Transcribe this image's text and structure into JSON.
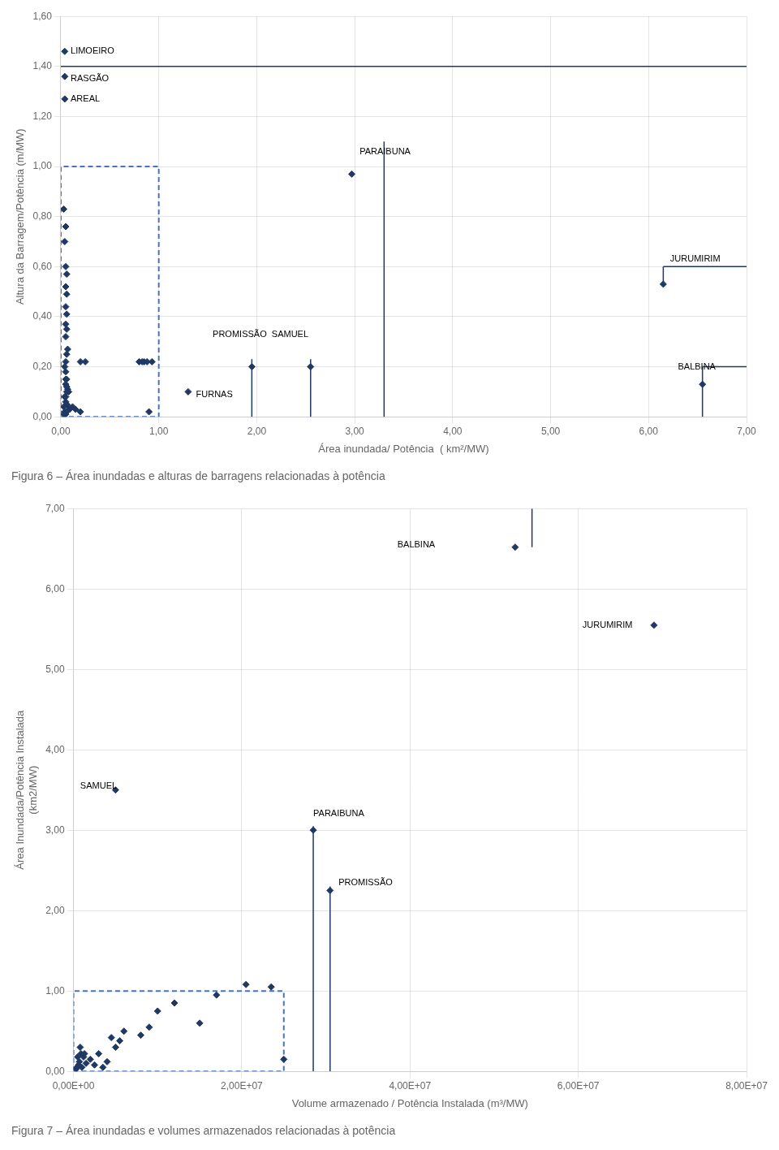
{
  "chart_data": [
    {
      "type": "scatter",
      "title": "Figura 6 – Área inundadas e alturas de barragens relacionadas à potência",
      "x_label": "Área inundada/ Potência  ( km²/MW)",
      "y_label": "Altura da Barragem/Potência (m/MW)",
      "xlim": [
        0,
        7.0
      ],
      "ylim": [
        0,
        1.6
      ],
      "xticks": [
        {
          "value": 0,
          "label": "0,00"
        },
        {
          "value": 1,
          "label": "1,00"
        },
        {
          "value": 2,
          "label": "2,00"
        },
        {
          "value": 3,
          "label": "3,00"
        },
        {
          "value": 4,
          "label": "4,00"
        },
        {
          "value": 5,
          "label": "5,00"
        },
        {
          "value": 6,
          "label": "6,00"
        },
        {
          "value": 7,
          "label": "7,00"
        }
      ],
      "yticks": [
        {
          "value": 0,
          "label": "0,00"
        },
        {
          "value": 0.2,
          "label": "0,20"
        },
        {
          "value": 0.4,
          "label": "0,40"
        },
        {
          "value": 0.6,
          "label": "0,60"
        },
        {
          "value": 0.8,
          "label": "0,80"
        },
        {
          "value": 1.0,
          "label": "1,00"
        },
        {
          "value": 1.2,
          "label": "1,20"
        },
        {
          "value": 1.4,
          "label": "1,40"
        },
        {
          "value": 1.6,
          "label": "1,60"
        }
      ],
      "grid": true,
      "color": "#1F3864",
      "marker": "diamond",
      "x": [
        0.04,
        0.04,
        0.04,
        2.97,
        6.15,
        2.55,
        6.55,
        1.3,
        0.03,
        0.05,
        0.04,
        0.05,
        0.06,
        0.05,
        0.06,
        0.05,
        0.06,
        0.05,
        0.06,
        0.05,
        0.07,
        0.06,
        0.05,
        0.04,
        0.05,
        0.06,
        0.05,
        0.07,
        0.06,
        0.05,
        0.2,
        0.25,
        0.05,
        0.06,
        0.08,
        0.04,
        0.05,
        0.06,
        0.03,
        0.08,
        0.12,
        0.15,
        0.09,
        0.04,
        0.06,
        0.05,
        0.03,
        0.2,
        0.9,
        0.8,
        0.85,
        0.83,
        0.88,
        0.93,
        1.95
      ],
      "values": [
        1.46,
        1.36,
        1.27,
        0.97,
        0.53,
        0.2,
        0.13,
        0.1,
        0.83,
        0.76,
        0.7,
        0.6,
        0.57,
        0.52,
        0.49,
        0.44,
        0.41,
        0.37,
        0.35,
        0.32,
        0.27,
        0.25,
        0.22,
        0.2,
        0.18,
        0.15,
        0.13,
        0.11,
        0.1,
        0.08,
        0.22,
        0.22,
        0.15,
        0.12,
        0.1,
        0.08,
        0.06,
        0.05,
        0.04,
        0.04,
        0.04,
        0.03,
        0.03,
        0.02,
        0.02,
        0.01,
        0.01,
        0.02,
        0.02,
        0.22,
        0.22,
        0.22,
        0.22,
        0.22,
        0.2
      ],
      "annotations": [
        {
          "text": "LIMOEIRO",
          "x": 0.1,
          "y": 1.46
        },
        {
          "text": "RASGÃO",
          "x": 0.1,
          "y": 1.35
        },
        {
          "text": "AREAL",
          "x": 0.1,
          "y": 1.27
        },
        {
          "text": "PARAIBUNA",
          "x": 3.05,
          "y": 1.06
        },
        {
          "text": "JURUMIRIM",
          "x": 6.22,
          "y": 0.63
        },
        {
          "text": "PROMISSÃO  SAMUEL",
          "x": 1.55,
          "y": 0.33
        },
        {
          "text": "BALBINA",
          "x": 6.3,
          "y": 0.2
        },
        {
          "text": "FURNAS",
          "x": 1.38,
          "y": 0.09
        }
      ],
      "lines": [
        {
          "x": [
            0.0,
            7.0
          ],
          "y": [
            1.4,
            1.4
          ],
          "color": "#1F3864"
        },
        {
          "x": [
            6.15,
            7.0
          ],
          "y": [
            0.6,
            0.6
          ],
          "color": "#1F3864"
        },
        {
          "x": [
            6.55,
            7.0
          ],
          "y": [
            0.2,
            0.2
          ],
          "color": "#1F3864"
        },
        {
          "x": [
            6.55,
            6.55
          ],
          "y": [
            0.0,
            0.2
          ],
          "color": "#1F3864"
        },
        {
          "x": [
            6.15,
            6.15
          ],
          "y": [
            0.53,
            0.6
          ],
          "color": "#1F3864"
        },
        {
          "x": [
            3.3,
            3.3
          ],
          "y": [
            0.0,
            1.1
          ],
          "color": "#1F3864"
        },
        {
          "x": [
            1.95,
            1.95
          ],
          "y": [
            0.0,
            0.23
          ],
          "color": "#1F3864"
        },
        {
          "x": [
            2.55,
            2.55
          ],
          "y": [
            0.0,
            0.23
          ],
          "color": "#1F3864"
        }
      ],
      "rects": [
        {
          "x0": 0.0,
          "y0": 0.0,
          "x1": 1.0,
          "y1": 1.0,
          "color": "#4472C4",
          "line_style": "dashed"
        }
      ]
    },
    {
      "type": "scatter",
      "title": "Figura 7 – Área inundadas e volumes armazenados relacionadas à potência",
      "x_label": "Volume armazenado / Potência Instalada (m³/MW)",
      "y_label": "Área Inundada/Potência Instalada\n(km2/MW)",
      "xlim": [
        0,
        80000000
      ],
      "ylim": [
        0,
        7.0
      ],
      "xticks": [
        {
          "value": 0,
          "label": "0,00E+00"
        },
        {
          "value": 20000000,
          "label": "2,00E+07"
        },
        {
          "value": 40000000,
          "label": "4,00E+07"
        },
        {
          "value": 60000000,
          "label": "6,00E+07"
        },
        {
          "value": 80000000,
          "label": "8,00E+07"
        }
      ],
      "yticks": [
        {
          "value": 0,
          "label": "0,00"
        },
        {
          "value": 1,
          "label": "1,00"
        },
        {
          "value": 2,
          "label": "2,00"
        },
        {
          "value": 3,
          "label": "3,00"
        },
        {
          "value": 4,
          "label": "4,00"
        },
        {
          "value": 5,
          "label": "5,00"
        },
        {
          "value": 6,
          "label": "6,00"
        },
        {
          "value": 7,
          "label": "7,00"
        }
      ],
      "grid": true,
      "color": "#1F3864",
      "marker": "diamond",
      "x": [
        69000000,
        52500000,
        28500000,
        30500000,
        5000000,
        17000000,
        20500000,
        23500000,
        15000000,
        25000000,
        2000000,
        3000000,
        5000000,
        8000000,
        4000000,
        1500000,
        2500000,
        1000000,
        3500000,
        500000,
        700000,
        600000,
        400000,
        300000,
        900000,
        800000,
        1200000,
        1300000,
        5500000,
        6000000,
        4500000,
        9000000,
        10000000,
        12000000
      ],
      "values": [
        5.55,
        6.52,
        3.0,
        2.25,
        3.5,
        0.95,
        1.08,
        1.05,
        0.6,
        0.15,
        0.15,
        0.22,
        0.3,
        0.45,
        0.12,
        0.1,
        0.08,
        0.05,
        0.05,
        0.18,
        0.12,
        0.08,
        0.05,
        0.03,
        0.22,
        0.3,
        0.18,
        0.22,
        0.38,
        0.5,
        0.42,
        0.55,
        0.75,
        0.85
      ],
      "annotations": [
        {
          "text": "BALBINA",
          "x": 38500000,
          "y": 6.55
        },
        {
          "text": "JURUMIRIM",
          "x": 60500000,
          "y": 5.55
        },
        {
          "text": "SAMUEL",
          "x": 800000,
          "y": 3.55
        },
        {
          "text": "PARAIBUNA",
          "x": 28500000,
          "y": 3.2
        },
        {
          "text": "PROMISSÃO",
          "x": 31500000,
          "y": 2.35
        }
      ],
      "lines": [
        {
          "x": [
            54500000,
            54500000
          ],
          "y": [
            6.52,
            7.0
          ],
          "color": "#1F3864"
        },
        {
          "x": [
            28500000,
            28500000
          ],
          "y": [
            0.0,
            3.05
          ],
          "color": "#1F3864"
        },
        {
          "x": [
            30500000,
            30500000
          ],
          "y": [
            0.0,
            2.3
          ],
          "color": "#1F3864"
        }
      ],
      "rects": [
        {
          "x0": 0.0,
          "y0": 0.0,
          "x1": 25000000,
          "y1": 1.0,
          "color": "#4472C4",
          "line_style": "dashed"
        }
      ]
    }
  ]
}
